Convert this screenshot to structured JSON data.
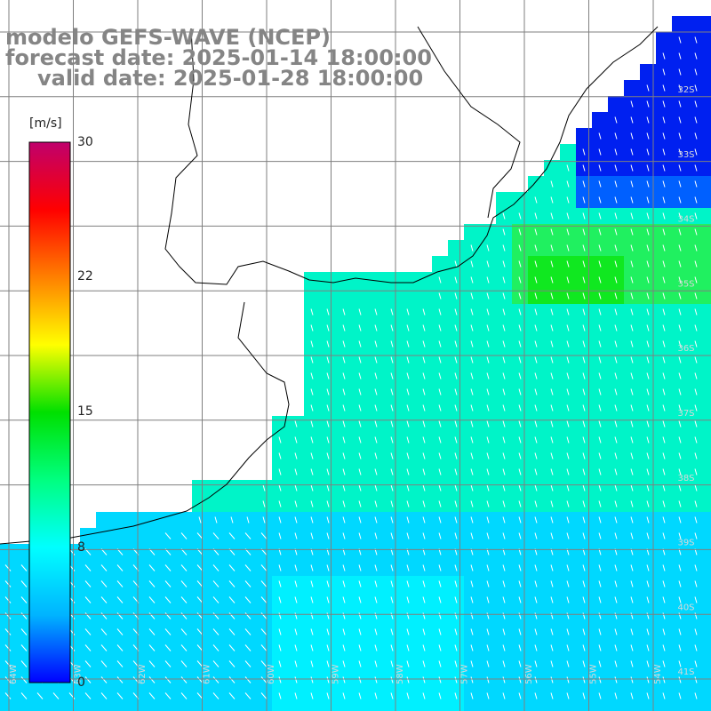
{
  "title": {
    "line1": "modelo GEFS-WAVE (NCEP)",
    "line2": "forecast date: 2025-01-14 18:00:00",
    "line3": "valid date: 2025-01-28 18:00:00"
  },
  "colorbar": {
    "unit": "[m/s]",
    "ticks": [
      {
        "value": 30,
        "label": "30"
      },
      {
        "value": 22,
        "label": "22"
      },
      {
        "value": 15,
        "label": "15"
      },
      {
        "value": 8,
        "label": "8"
      },
      {
        "value": 0,
        "label": "0"
      }
    ],
    "range": [
      0,
      30
    ],
    "colors": [
      "#0000ff",
      "#00b4ff",
      "#00ffff",
      "#00ff80",
      "#00e000",
      "#ffff00",
      "#ff8000",
      "#ff0000",
      "#c0006c"
    ]
  },
  "map": {
    "lat_labels": [
      "32S",
      "33S",
      "34S",
      "35S",
      "36S",
      "37S",
      "38S",
      "39S",
      "40S",
      "41S"
    ],
    "lon_labels": [
      "64W",
      "63W",
      "62W",
      "61W",
      "60W",
      "59W",
      "58W",
      "57W",
      "56W",
      "55W",
      "54W"
    ],
    "arrow_color": "#ffffff",
    "coast_color": "#000000",
    "grid_color": "#7f7f7f",
    "land_color": "#ffffff"
  }
}
